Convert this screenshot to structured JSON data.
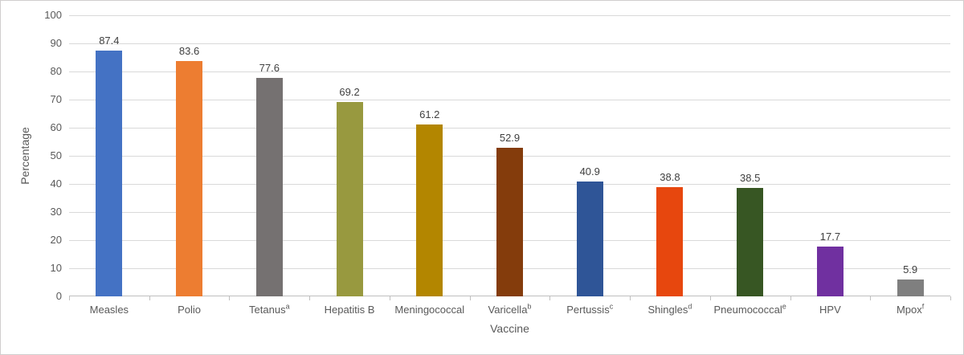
{
  "chart_data": {
    "type": "bar",
    "title": "",
    "xlabel": "Vaccine",
    "ylabel": "Percentage",
    "ylim": [
      0,
      100
    ],
    "yticks": [
      0,
      10,
      20,
      30,
      40,
      50,
      60,
      70,
      80,
      90,
      100
    ],
    "grid": true,
    "legend": "none",
    "categories": [
      "Measles",
      "Polio",
      "Tetanus",
      "Hepatitis B",
      "Meningococcal",
      "Varicella",
      "Pertussis",
      "Shingles",
      "Pneumococcal",
      "HPV",
      "Mpox"
    ],
    "category_superscripts": [
      "",
      "",
      "a",
      "",
      "",
      "b",
      "c",
      "d",
      "e",
      "",
      "f"
    ],
    "values": [
      87.4,
      83.6,
      77.6,
      69.2,
      61.2,
      52.9,
      40.9,
      38.8,
      38.5,
      17.7,
      5.9
    ],
    "value_labels": [
      "87.4",
      "83.6",
      "77.6",
      "69.2",
      "61.2",
      "52.9",
      "40.9",
      "38.8",
      "38.5",
      "17.7",
      "5.9"
    ],
    "bar_colors": [
      "#4472C4",
      "#ED7D31",
      "#757171",
      "#98993F",
      "#B38600",
      "#843C0C",
      "#2F5597",
      "#E7470E",
      "#375623",
      "#7030A0",
      "#7F7F7F"
    ]
  },
  "colors": {
    "gridline": "#d9d9d9",
    "axis_line": "#bfbfbf",
    "tick_text": "#595959",
    "value_text": "#404040",
    "frame_border": "#d0cece",
    "background": "#ffffff"
  }
}
